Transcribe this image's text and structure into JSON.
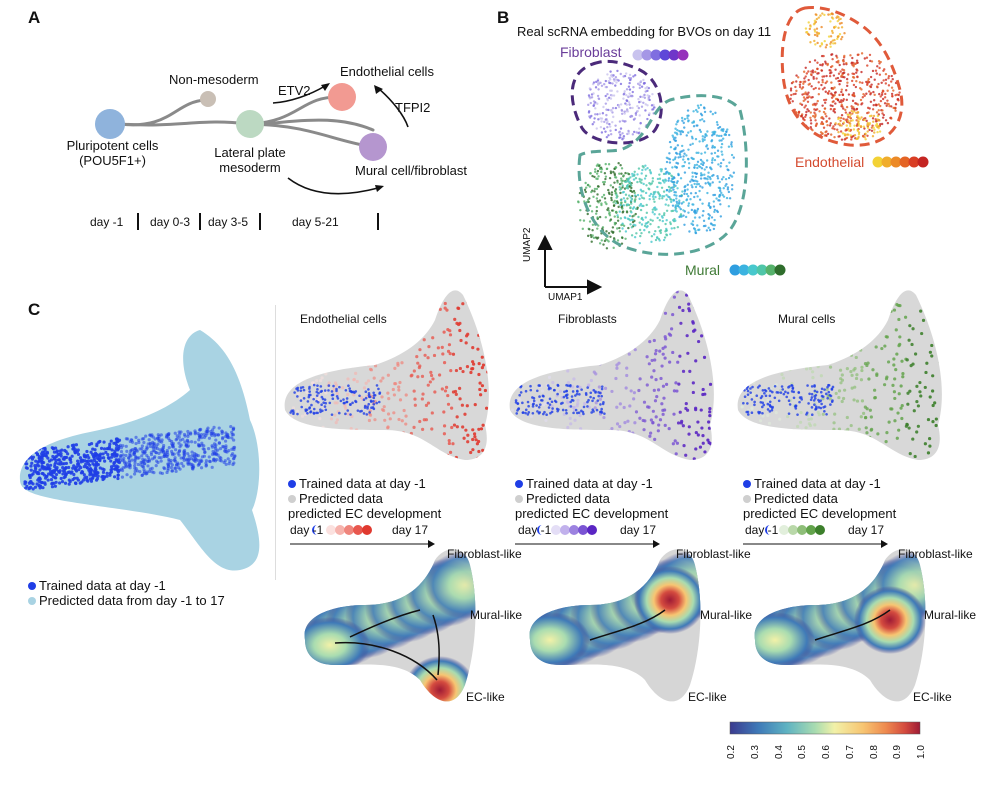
{
  "panels": {
    "a": "A",
    "b": "B",
    "c": "C"
  },
  "panel_a": {
    "nodes": {
      "pluripotent": "Pluripotent cells",
      "pluripotent_sub": "(POU5F1+)",
      "non_mesoderm": "Non-mesoderm",
      "lateral_plate_1": "Lateral plate",
      "lateral_plate_2": "mesoderm",
      "endothelial": "Endothelial cells",
      "mural": "Mural cell/fibroblast"
    },
    "factors": {
      "etv2": "ETV2",
      "tfpi2": "TFPI2"
    },
    "timeline": [
      "day -1",
      "day 0-3",
      "day 3-5",
      "day 5-21"
    ],
    "colors": {
      "pluripotent": "#8fb3dc",
      "non_mesoderm": "#c9bfb5",
      "lateral": "#bcd9c2",
      "endothelial": "#f29a92",
      "mural": "#b596cf"
    }
  },
  "panel_b": {
    "title": "Real scRNA embedding for BVOs on day 11",
    "labels": {
      "fibroblast": "Fibroblast",
      "endothelial": "Endothelial",
      "mural": "Mural"
    },
    "axes": {
      "x": "UMAP1",
      "y": "UMAP2"
    },
    "colors": {
      "fibroblast_scale": [
        "#c9c3ee",
        "#a597e6",
        "#7f6ee0",
        "#5e48d8",
        "#6f36c9",
        "#9531bb"
      ],
      "endothelial_scale": [
        "#f3d235",
        "#f0ad2c",
        "#ec8a27",
        "#e46425",
        "#d93e25",
        "#c42522"
      ],
      "mural_scale": [
        "#2f9ee0",
        "#3bb3e0",
        "#48c8cd",
        "#4fc6a8",
        "#56b26b",
        "#2f6d2c"
      ],
      "fibroblast_label": "#6a3d9a",
      "endothelial_label": "#d44a2f",
      "mural_label": "#3f7a35"
    }
  },
  "panel_c": {
    "overview_legend": {
      "trained": "Trained data at day -1",
      "predicted": "Predicted data from day -1 to 17"
    },
    "subpanels": [
      {
        "title": "Endothelial cells",
        "legend_trained": "Trained data at day -1",
        "legend_predicted": "Predicted data",
        "legend_dev": "predicted EC development",
        "day_start": "day -1",
        "day_end": "day 17",
        "color": "#e8392e",
        "scale": [
          "#fbe1df",
          "#f6b3ad",
          "#ef857c",
          "#e8574e",
          "#e0392f"
        ]
      },
      {
        "title": "Fibroblasts",
        "legend_trained": "Trained data at day -1",
        "legend_predicted": "Predicted data",
        "legend_dev": "predicted EC development",
        "day_start": "day -1",
        "day_end": "day 17",
        "color": "#6a2cc4",
        "scale": [
          "#e4def6",
          "#c1b1ec",
          "#9c82e0",
          "#7a54d3",
          "#5a25c3"
        ]
      },
      {
        "title": "Mural cells",
        "legend_trained": "Trained data at day -1",
        "legend_predicted": "Predicted data",
        "legend_dev": "predicted EC development",
        "day_start": "day -1",
        "day_end": "day 17",
        "color": "#3c7f2b",
        "scale": [
          "#e2efdc",
          "#b9d8a9",
          "#8ebe78",
          "#62a34b",
          "#3c7f2b"
        ]
      }
    ],
    "density_labels": {
      "fibroblast_like": "Fibroblast-like",
      "mural_like": "Mural-like",
      "ec_like": "EC-like"
    },
    "colorbar": {
      "ticks": [
        "0.2",
        "0.3",
        "0.4",
        "0.5",
        "0.6",
        "0.7",
        "0.8",
        "0.9",
        "1.0"
      ],
      "colors": [
        "#3c3b8f",
        "#3f7ab8",
        "#5fb3c2",
        "#a9dcb0",
        "#f2f1a8",
        "#f7c572",
        "#ee8a4f",
        "#d44b3f",
        "#9e1b35"
      ]
    }
  }
}
